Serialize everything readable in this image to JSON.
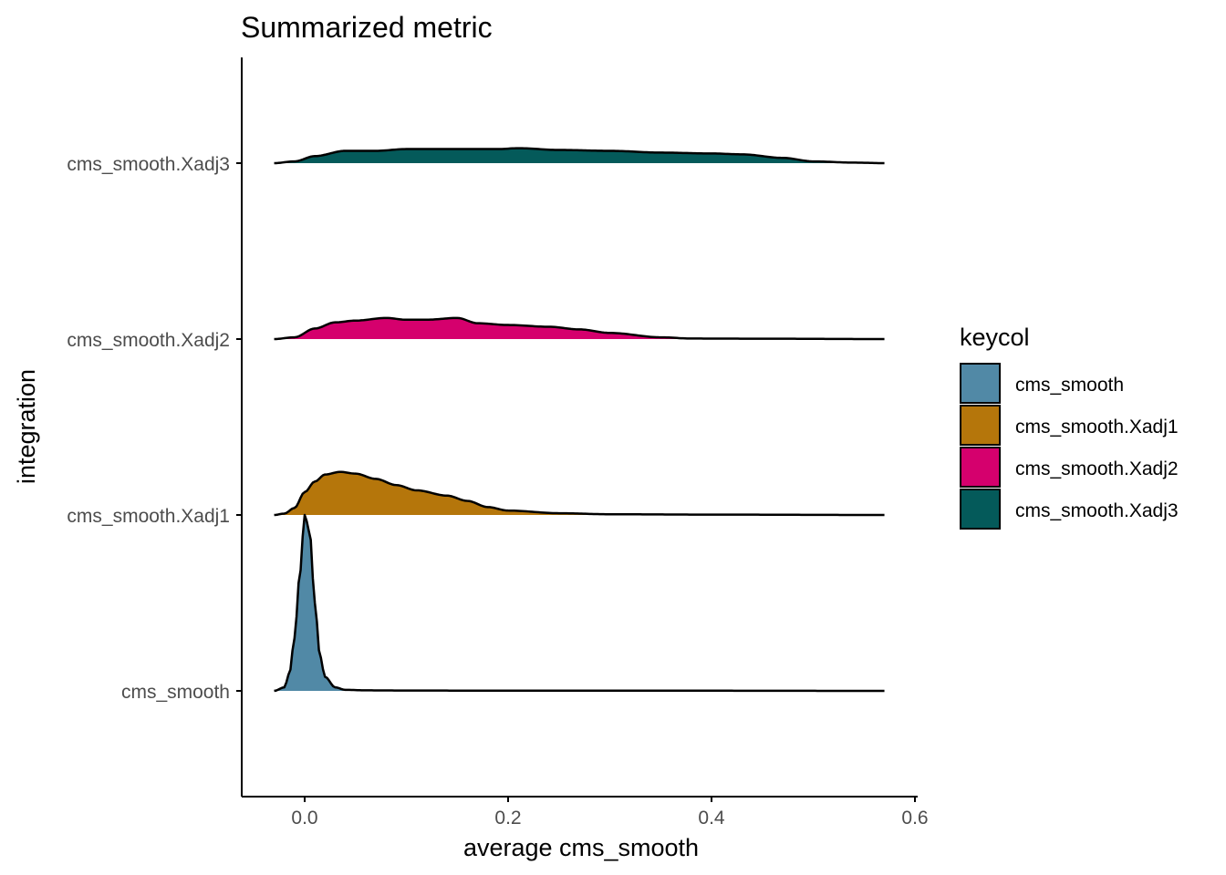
{
  "chart_data": {
    "type": "ridgeline",
    "title": "Summarized metric",
    "xlabel": "average cms_smooth",
    "ylabel": "integration",
    "xlim": [
      -0.06,
      0.6
    ],
    "x_ticks": [
      {
        "value": 0.0,
        "label": "0.0"
      },
      {
        "value": 0.2,
        "label": "0.2"
      },
      {
        "value": 0.4,
        "label": "0.4"
      },
      {
        "value": 0.6,
        "label": "0.6"
      }
    ],
    "categories": [
      "cms_smooth",
      "cms_smooth.Xadj1",
      "cms_smooth.Xadj2",
      "cms_smooth.Xadj3"
    ],
    "legend": {
      "title": "keycol",
      "position": "right",
      "entries": [
        "cms_smooth",
        "cms_smooth.Xadj1",
        "cms_smooth.Xadj2",
        "cms_smooth.Xadj3"
      ]
    },
    "grid": false,
    "series": [
      {
        "name": "cms_smooth",
        "color": "#5189A6",
        "x_range": [
          -0.03,
          0.57
        ],
        "density": [
          [
            -0.03,
            0.0
          ],
          [
            -0.02,
            0.02
          ],
          [
            -0.015,
            0.1
          ],
          [
            -0.01,
            0.3
          ],
          [
            -0.005,
            0.65
          ],
          [
            0.0,
            1.0
          ],
          [
            0.005,
            0.9
          ],
          [
            0.01,
            0.5
          ],
          [
            0.015,
            0.2
          ],
          [
            0.02,
            0.08
          ],
          [
            0.03,
            0.02
          ],
          [
            0.04,
            0.006
          ],
          [
            0.06,
            0.003
          ],
          [
            0.1,
            0.002
          ],
          [
            0.2,
            0.001
          ],
          [
            0.3,
            0.001
          ],
          [
            0.4,
            0.001
          ],
          [
            0.57,
            0.0
          ]
        ]
      },
      {
        "name": "cms_smooth.Xadj1",
        "color": "#B5760B",
        "x_range": [
          -0.03,
          0.57
        ],
        "density": [
          [
            -0.03,
            0.0
          ],
          [
            -0.02,
            0.008
          ],
          [
            -0.01,
            0.04
          ],
          [
            0.0,
            0.13
          ],
          [
            0.01,
            0.19
          ],
          [
            0.02,
            0.23
          ],
          [
            0.035,
            0.245
          ],
          [
            0.05,
            0.235
          ],
          [
            0.07,
            0.205
          ],
          [
            0.09,
            0.17
          ],
          [
            0.11,
            0.14
          ],
          [
            0.14,
            0.11
          ],
          [
            0.16,
            0.08
          ],
          [
            0.18,
            0.045
          ],
          [
            0.2,
            0.025
          ],
          [
            0.25,
            0.01
          ],
          [
            0.3,
            0.004
          ],
          [
            0.4,
            0.002
          ],
          [
            0.57,
            0.0
          ]
        ]
      },
      {
        "name": "cms_smooth.Xadj2",
        "color": "#D5006D",
        "x_range": [
          -0.03,
          0.57
        ],
        "density": [
          [
            -0.03,
            0.0
          ],
          [
            -0.01,
            0.01
          ],
          [
            0.01,
            0.06
          ],
          [
            0.03,
            0.095
          ],
          [
            0.05,
            0.105
          ],
          [
            0.08,
            0.12
          ],
          [
            0.1,
            0.11
          ],
          [
            0.12,
            0.11
          ],
          [
            0.15,
            0.12
          ],
          [
            0.17,
            0.09
          ],
          [
            0.2,
            0.08
          ],
          [
            0.24,
            0.07
          ],
          [
            0.27,
            0.055
          ],
          [
            0.3,
            0.035
          ],
          [
            0.35,
            0.01
          ],
          [
            0.38,
            0.003
          ],
          [
            0.45,
            0.002
          ],
          [
            0.57,
            0.0
          ]
        ]
      },
      {
        "name": "cms_smooth.Xadj3",
        "color": "#045A5A",
        "x_range": [
          -0.03,
          0.57
        ],
        "density": [
          [
            -0.03,
            0.0
          ],
          [
            -0.01,
            0.01
          ],
          [
            0.01,
            0.04
          ],
          [
            0.04,
            0.07
          ],
          [
            0.07,
            0.07
          ],
          [
            0.1,
            0.08
          ],
          [
            0.15,
            0.08
          ],
          [
            0.19,
            0.08
          ],
          [
            0.21,
            0.085
          ],
          [
            0.25,
            0.075
          ],
          [
            0.3,
            0.07
          ],
          [
            0.35,
            0.06
          ],
          [
            0.4,
            0.055
          ],
          [
            0.43,
            0.05
          ],
          [
            0.47,
            0.03
          ],
          [
            0.5,
            0.01
          ],
          [
            0.54,
            0.003
          ],
          [
            0.57,
            0.0
          ]
        ]
      }
    ]
  }
}
